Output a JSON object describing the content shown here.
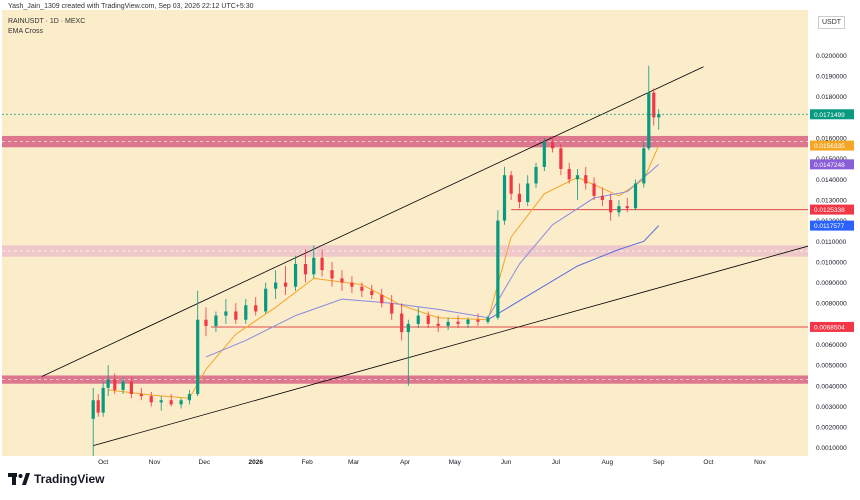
{
  "header": {
    "author_line": "Yash_Jain_1309 created with TradingView.com, Sep 03, 2026 22:12 UTC+5:30",
    "symbol_line": "RAINUSDT · 1D · MEXC",
    "indicator": "EMA Cross"
  },
  "currency_badge": "USDT",
  "footer": {
    "brand": "TradingView"
  },
  "colors": {
    "background": "#fbecca",
    "up": "#089981",
    "down": "#f23645",
    "ema_fast": "#f5a623",
    "ema_slow": "#8a8ae0",
    "trendline": "#000000",
    "zone_red": "#c2185b",
    "zone_pink": "#e1a0c8",
    "hline": "#e04a4a"
  },
  "chart_data": {
    "type": "candlestick",
    "title": "",
    "y_axis": {
      "ticks": [
        "0.0200000",
        "0.0190000",
        "0.0180000",
        "0.0160000",
        "0.0150000",
        "0.0140000",
        "0.0130000",
        "0.0120000",
        "0.0110000",
        "0.0100000",
        "0.0090000",
        "0.0080000",
        "0.0070000",
        "0.0060000",
        "0.0050000",
        "0.0040000",
        "0.0030000",
        "0.0020000",
        "0.0010000"
      ],
      "ylim": [
        0.0006,
        0.0222
      ]
    },
    "x_axis": {
      "ticks": [
        {
          "label": "Oct",
          "date": "2025-10-01"
        },
        {
          "label": "Nov",
          "date": "2025-11-01"
        },
        {
          "label": "Dec",
          "date": "2025-12-01"
        },
        {
          "label": "2026",
          "date": "2026-01-01"
        },
        {
          "label": "Feb",
          "date": "2026-02-01"
        },
        {
          "label": "Mar",
          "date": "2026-03-01"
        },
        {
          "label": "Apr",
          "date": "2026-04-01"
        },
        {
          "label": "May",
          "date": "2026-05-01"
        },
        {
          "label": "Jun",
          "date": "2026-06-01"
        },
        {
          "label": "Jul",
          "date": "2026-07-01"
        },
        {
          "label": "Aug",
          "date": "2026-08-01"
        },
        {
          "label": "Sep",
          "date": "2026-09-01"
        },
        {
          "label": "Oct",
          "date": "2026-10-01"
        },
        {
          "label": "Nov",
          "date": "2026-11-01"
        }
      ]
    },
    "price_labels": [
      {
        "value": "0.0171499",
        "color": "#089981"
      },
      {
        "value": "0.0156335",
        "color": "#f5a623"
      },
      {
        "value": "0.0147248",
        "color": "#8a5ed6"
      },
      {
        "value": "0.0125338",
        "color": "#f23645"
      },
      {
        "value": "0.0117577",
        "color": "#2962ff"
      },
      {
        "value": "0.0068504",
        "color": "#f23645"
      }
    ],
    "zones": [
      {
        "kind": "resistance",
        "from": 0.01555,
        "to": 0.0161,
        "color": "#c2185b"
      },
      {
        "kind": "support",
        "from": 0.01025,
        "to": 0.0108,
        "color": "#e1a0c8"
      },
      {
        "kind": "support",
        "from": 0.0041,
        "to": 0.0045,
        "color": "#c2185b"
      }
    ],
    "hlines": [
      {
        "value": 0.01253,
        "from": "2026-06-04",
        "to": "2026-12-15"
      },
      {
        "value": 0.00685,
        "from": "2025-12-05",
        "to": "2026-12-15"
      }
    ],
    "trendlines": [
      {
        "from": [
          "2025-08-25",
          0.00445
        ],
        "to": [
          "2026-09-28",
          0.01945
        ]
      },
      {
        "from": [
          "2025-09-25",
          0.0011
        ],
        "to": [
          "2026-12-15",
          0.0111
        ]
      }
    ],
    "series": [
      {
        "name": "RAINUSDT",
        "kind": "ohlc",
        "points": [
          {
            "date": "2025-09-25",
            "o": 0.0024,
            "h": 0.0039,
            "l": 0.0004,
            "c": 0.0033
          },
          {
            "date": "2025-09-28",
            "o": 0.0033,
            "h": 0.0036,
            "l": 0.0025,
            "c": 0.0027
          },
          {
            "date": "2025-10-01",
            "o": 0.0027,
            "h": 0.0042,
            "l": 0.0025,
            "c": 0.0039
          },
          {
            "date": "2025-10-04",
            "o": 0.0039,
            "h": 0.005,
            "l": 0.0035,
            "c": 0.0043
          },
          {
            "date": "2025-10-08",
            "o": 0.0043,
            "h": 0.0046,
            "l": 0.0036,
            "c": 0.0038
          },
          {
            "date": "2025-10-13",
            "o": 0.0038,
            "h": 0.0044,
            "l": 0.0036,
            "c": 0.0042
          },
          {
            "date": "2025-10-18",
            "o": 0.0042,
            "h": 0.0044,
            "l": 0.0034,
            "c": 0.0036
          },
          {
            "date": "2025-10-24",
            "o": 0.0036,
            "h": 0.0039,
            "l": 0.0033,
            "c": 0.0035
          },
          {
            "date": "2025-10-30",
            "o": 0.0035,
            "h": 0.0037,
            "l": 0.003,
            "c": 0.0032
          },
          {
            "date": "2025-11-05",
            "o": 0.0032,
            "h": 0.0035,
            "l": 0.0028,
            "c": 0.0033
          },
          {
            "date": "2025-11-11",
            "o": 0.0033,
            "h": 0.0036,
            "l": 0.003,
            "c": 0.0031
          },
          {
            "date": "2025-11-17",
            "o": 0.0031,
            "h": 0.0034,
            "l": 0.0029,
            "c": 0.0033
          },
          {
            "date": "2025-11-22",
            "o": 0.0033,
            "h": 0.0038,
            "l": 0.0031,
            "c": 0.0036
          },
          {
            "date": "2025-11-27",
            "o": 0.0036,
            "h": 0.0086,
            "l": 0.0035,
            "c": 0.0072
          },
          {
            "date": "2025-12-02",
            "o": 0.0072,
            "h": 0.0078,
            "l": 0.0064,
            "c": 0.0069
          },
          {
            "date": "2025-12-08",
            "o": 0.0069,
            "h": 0.0076,
            "l": 0.0066,
            "c": 0.0074
          },
          {
            "date": "2025-12-14",
            "o": 0.0074,
            "h": 0.0082,
            "l": 0.007,
            "c": 0.0076
          },
          {
            "date": "2025-12-20",
            "o": 0.0076,
            "h": 0.008,
            "l": 0.007,
            "c": 0.0072
          },
          {
            "date": "2025-12-26",
            "o": 0.0072,
            "h": 0.0082,
            "l": 0.007,
            "c": 0.0079
          },
          {
            "date": "2026-01-01",
            "o": 0.0079,
            "h": 0.0083,
            "l": 0.0074,
            "c": 0.0076
          },
          {
            "date": "2026-01-07",
            "o": 0.0076,
            "h": 0.009,
            "l": 0.0075,
            "c": 0.0087
          },
          {
            "date": "2026-01-13",
            "o": 0.0087,
            "h": 0.0096,
            "l": 0.0082,
            "c": 0.009
          },
          {
            "date": "2026-01-19",
            "o": 0.009,
            "h": 0.0098,
            "l": 0.0084,
            "c": 0.0088
          },
          {
            "date": "2026-01-25",
            "o": 0.0088,
            "h": 0.0103,
            "l": 0.0086,
            "c": 0.0099
          },
          {
            "date": "2026-01-31",
            "o": 0.0099,
            "h": 0.0106,
            "l": 0.009,
            "c": 0.0094
          },
          {
            "date": "2026-02-05",
            "o": 0.0094,
            "h": 0.0108,
            "l": 0.0092,
            "c": 0.0102
          },
          {
            "date": "2026-02-10",
            "o": 0.0102,
            "h": 0.0106,
            "l": 0.0093,
            "c": 0.0096
          },
          {
            "date": "2026-02-16",
            "o": 0.0096,
            "h": 0.01,
            "l": 0.0088,
            "c": 0.0092
          },
          {
            "date": "2026-02-22",
            "o": 0.0092,
            "h": 0.0096,
            "l": 0.0086,
            "c": 0.009
          },
          {
            "date": "2026-02-28",
            "o": 0.009,
            "h": 0.0093,
            "l": 0.0085,
            "c": 0.0088
          },
          {
            "date": "2026-03-06",
            "o": 0.0088,
            "h": 0.009,
            "l": 0.0083,
            "c": 0.0086
          },
          {
            "date": "2026-03-12",
            "o": 0.0086,
            "h": 0.0089,
            "l": 0.0082,
            "c": 0.0084
          },
          {
            "date": "2026-03-18",
            "o": 0.0084,
            "h": 0.0087,
            "l": 0.0078,
            "c": 0.008
          },
          {
            "date": "2026-03-24",
            "o": 0.008,
            "h": 0.0084,
            "l": 0.0072,
            "c": 0.0075
          },
          {
            "date": "2026-03-30",
            "o": 0.0075,
            "h": 0.008,
            "l": 0.0062,
            "c": 0.0066
          },
          {
            "date": "2026-04-03",
            "o": 0.0066,
            "h": 0.0072,
            "l": 0.004,
            "c": 0.007
          },
          {
            "date": "2026-04-09",
            "o": 0.007,
            "h": 0.0078,
            "l": 0.0068,
            "c": 0.0074
          },
          {
            "date": "2026-04-15",
            "o": 0.0074,
            "h": 0.0076,
            "l": 0.0068,
            "c": 0.007
          },
          {
            "date": "2026-04-21",
            "o": 0.007,
            "h": 0.0074,
            "l": 0.0066,
            "c": 0.0069
          },
          {
            "date": "2026-04-27",
            "o": 0.0069,
            "h": 0.0073,
            "l": 0.0067,
            "c": 0.0071
          },
          {
            "date": "2026-05-03",
            "o": 0.0071,
            "h": 0.0074,
            "l": 0.0068,
            "c": 0.007
          },
          {
            "date": "2026-05-09",
            "o": 0.007,
            "h": 0.0073,
            "l": 0.0068,
            "c": 0.0072
          },
          {
            "date": "2026-05-15",
            "o": 0.0072,
            "h": 0.0075,
            "l": 0.0069,
            "c": 0.0071
          },
          {
            "date": "2026-05-21",
            "o": 0.0071,
            "h": 0.0074,
            "l": 0.007,
            "c": 0.0073
          },
          {
            "date": "2026-05-27",
            "o": 0.0073,
            "h": 0.0125,
            "l": 0.0072,
            "c": 0.012
          },
          {
            "date": "2026-05-31",
            "o": 0.012,
            "h": 0.0146,
            "l": 0.0118,
            "c": 0.0142
          },
          {
            "date": "2026-06-04",
            "o": 0.0142,
            "h": 0.0144,
            "l": 0.013,
            "c": 0.0133
          },
          {
            "date": "2026-06-09",
            "o": 0.0133,
            "h": 0.0138,
            "l": 0.0126,
            "c": 0.0129
          },
          {
            "date": "2026-06-14",
            "o": 0.0129,
            "h": 0.0142,
            "l": 0.0127,
            "c": 0.0138
          },
          {
            "date": "2026-06-19",
            "o": 0.0138,
            "h": 0.0148,
            "l": 0.0136,
            "c": 0.0146
          },
          {
            "date": "2026-06-24",
            "o": 0.0146,
            "h": 0.016,
            "l": 0.0144,
            "c": 0.0158
          },
          {
            "date": "2026-06-29",
            "o": 0.0158,
            "h": 0.0161,
            "l": 0.0153,
            "c": 0.0155
          },
          {
            "date": "2026-07-04",
            "o": 0.0155,
            "h": 0.0157,
            "l": 0.0142,
            "c": 0.0145
          },
          {
            "date": "2026-07-09",
            "o": 0.0145,
            "h": 0.0148,
            "l": 0.0138,
            "c": 0.014
          },
          {
            "date": "2026-07-14",
            "o": 0.014,
            "h": 0.0145,
            "l": 0.013,
            "c": 0.0142
          },
          {
            "date": "2026-07-19",
            "o": 0.0142,
            "h": 0.0146,
            "l": 0.0135,
            "c": 0.0138
          },
          {
            "date": "2026-07-24",
            "o": 0.0138,
            "h": 0.0141,
            "l": 0.013,
            "c": 0.0132
          },
          {
            "date": "2026-07-29",
            "o": 0.0132,
            "h": 0.0136,
            "l": 0.0127,
            "c": 0.013
          },
          {
            "date": "2026-08-03",
            "o": 0.013,
            "h": 0.0133,
            "l": 0.012,
            "c": 0.0124
          },
          {
            "date": "2026-08-08",
            "o": 0.0124,
            "h": 0.013,
            "l": 0.0122,
            "c": 0.0127
          },
          {
            "date": "2026-08-13",
            "o": 0.0127,
            "h": 0.0131,
            "l": 0.0124,
            "c": 0.0126
          },
          {
            "date": "2026-08-18",
            "o": 0.0126,
            "h": 0.014,
            "l": 0.0125,
            "c": 0.0138
          },
          {
            "date": "2026-08-23",
            "o": 0.0138,
            "h": 0.0158,
            "l": 0.0136,
            "c": 0.0155
          },
          {
            "date": "2026-08-26",
            "o": 0.0155,
            "h": 0.0195,
            "l": 0.0154,
            "c": 0.0182
          },
          {
            "date": "2026-08-29",
            "o": 0.0182,
            "h": 0.0184,
            "l": 0.0166,
            "c": 0.017
          },
          {
            "date": "2026-09-01",
            "o": 0.017,
            "h": 0.0174,
            "l": 0.0164,
            "c": 0.01715
          }
        ]
      },
      {
        "name": "EMA fast",
        "kind": "line",
        "points": [
          {
            "date": "2025-10-04",
            "v": 0.0038
          },
          {
            "date": "2025-10-30",
            "v": 0.00355
          },
          {
            "date": "2025-11-22",
            "v": 0.0034
          },
          {
            "date": "2025-12-02",
            "v": 0.0048
          },
          {
            "date": "2025-12-20",
            "v": 0.0065
          },
          {
            "date": "2026-01-13",
            "v": 0.0078
          },
          {
            "date": "2026-02-05",
            "v": 0.0092
          },
          {
            "date": "2026-03-06",
            "v": 0.0089
          },
          {
            "date": "2026-03-30",
            "v": 0.0079
          },
          {
            "date": "2026-04-21",
            "v": 0.0073
          },
          {
            "date": "2026-05-21",
            "v": 0.0072
          },
          {
            "date": "2026-06-04",
            "v": 0.0112
          },
          {
            "date": "2026-06-24",
            "v": 0.0133
          },
          {
            "date": "2026-07-14",
            "v": 0.0141
          },
          {
            "date": "2026-08-08",
            "v": 0.0132
          },
          {
            "date": "2026-08-23",
            "v": 0.014
          },
          {
            "date": "2026-09-01",
            "v": 0.01563
          }
        ]
      },
      {
        "name": "EMA slow",
        "kind": "line",
        "points": [
          {
            "date": "2025-12-02",
            "v": 0.0054
          },
          {
            "date": "2025-12-26",
            "v": 0.0062
          },
          {
            "date": "2026-01-25",
            "v": 0.0074
          },
          {
            "date": "2026-02-22",
            "v": 0.0082
          },
          {
            "date": "2026-03-24",
            "v": 0.008
          },
          {
            "date": "2026-04-21",
            "v": 0.0077
          },
          {
            "date": "2026-05-21",
            "v": 0.0073
          },
          {
            "date": "2026-06-09",
            "v": 0.0099
          },
          {
            "date": "2026-06-29",
            "v": 0.0118
          },
          {
            "date": "2026-07-24",
            "v": 0.0131
          },
          {
            "date": "2026-08-13",
            "v": 0.0134
          },
          {
            "date": "2026-09-01",
            "v": 0.01472
          }
        ]
      },
      {
        "name": "MA long",
        "kind": "line",
        "points": [
          {
            "date": "2026-05-21",
            "v": 0.0072
          },
          {
            "date": "2026-06-19",
            "v": 0.0086
          },
          {
            "date": "2026-07-14",
            "v": 0.0098
          },
          {
            "date": "2026-08-08",
            "v": 0.0106
          },
          {
            "date": "2026-08-23",
            "v": 0.011
          },
          {
            "date": "2026-09-01",
            "v": 0.01176
          }
        ]
      }
    ]
  }
}
